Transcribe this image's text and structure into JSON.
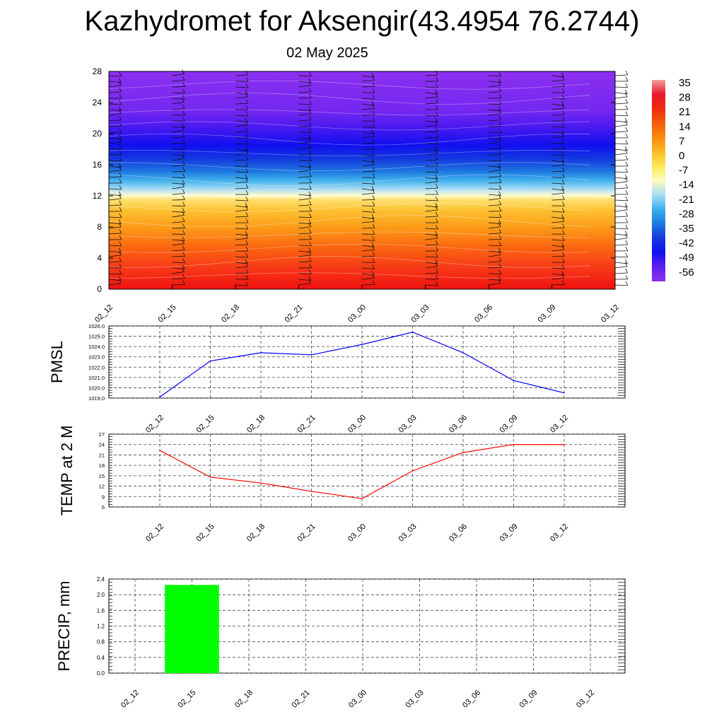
{
  "header": {
    "title": "Kazhydromet for Aksengir(43.4954 76.2744)",
    "subtitle": "02 May 2025"
  },
  "colors": {
    "pmsl_line": "#0000ff",
    "temp_line": "#ff0000",
    "precip_bar": "#00ff00",
    "grid": "#555555"
  },
  "time_labels": [
    "02_12",
    "02_15",
    "02_18",
    "02_21",
    "03_00",
    "03_03",
    "03_06",
    "03_09",
    "03_12"
  ],
  "colorbar": {
    "labels": [
      "35",
      "28",
      "21",
      "14",
      "7",
      "0",
      "-7",
      "-14",
      "-21",
      "-28",
      "-35",
      "-42",
      "-49",
      "-56"
    ],
    "stops": [
      "#f4a0a0",
      "#e8182a",
      "#f02c10",
      "#f55c0a",
      "#f88c10",
      "#fbbc24",
      "#fde75a",
      "#fffcc0",
      "#a8dcf4",
      "#38b0ec",
      "#1e78e0",
      "#1438e0",
      "#1010f0",
      "#6020f0",
      "#8c30f0"
    ]
  },
  "chart_data": [
    {
      "type": "heatmap",
      "title": "",
      "xlabel": "",
      "ylabel": "",
      "x": [
        "02_12",
        "02_15",
        "02_18",
        "02_21",
        "03_00",
        "03_03",
        "03_06",
        "03_09",
        "03_12"
      ],
      "yticks": [
        "0",
        "4",
        "8",
        "12",
        "16",
        "20",
        "24",
        "28"
      ],
      "ylim": [
        0,
        28
      ],
      "legend": "right",
      "wind_barbs": true
    },
    {
      "type": "line",
      "ylabel": "PMSL",
      "x": [
        "02_12",
        "02_15",
        "02_18",
        "02_21",
        "03_00",
        "03_03",
        "03_06",
        "03_09",
        "03_12"
      ],
      "values": [
        1019.1,
        1022.6,
        1023.4,
        1023.2,
        1024.2,
        1025.4,
        1023.4,
        1020.7,
        1019.5
      ],
      "yticks": [
        "1019.0",
        "1020.0",
        "1021.0",
        "1022.0",
        "1023.0",
        "1024.0",
        "1025.0",
        "1026.0"
      ],
      "ylim": [
        1019,
        1026
      ],
      "grid": true
    },
    {
      "type": "line",
      "ylabel": "TEMP at 2 M",
      "x": [
        "02_12",
        "02_15",
        "02_18",
        "02_21",
        "03_00",
        "03_03",
        "03_06",
        "03_09",
        "03_12"
      ],
      "values": [
        22.3,
        14.6,
        12.9,
        10.5,
        8.4,
        16.4,
        21.7,
        24.0,
        24.0
      ],
      "yticks": [
        "6",
        "9",
        "12",
        "15",
        "18",
        "21",
        "24",
        "27"
      ],
      "ylim": [
        6,
        27
      ],
      "grid": true
    },
    {
      "type": "bar",
      "ylabel": "PRECIP, mm",
      "categories": [
        "02_12",
        "02_15",
        "02_18",
        "02_21",
        "03_00",
        "03_03",
        "03_06",
        "03_09",
        "03_12"
      ],
      "values": [
        0,
        2.25,
        0,
        0,
        0,
        0,
        0,
        0,
        0
      ],
      "yticks": [
        "0.0",
        "0.4",
        "0.8",
        "1.2",
        "1.6",
        "2.0",
        "2.4"
      ],
      "ylim": [
        0,
        2.4
      ],
      "grid": true
    }
  ]
}
